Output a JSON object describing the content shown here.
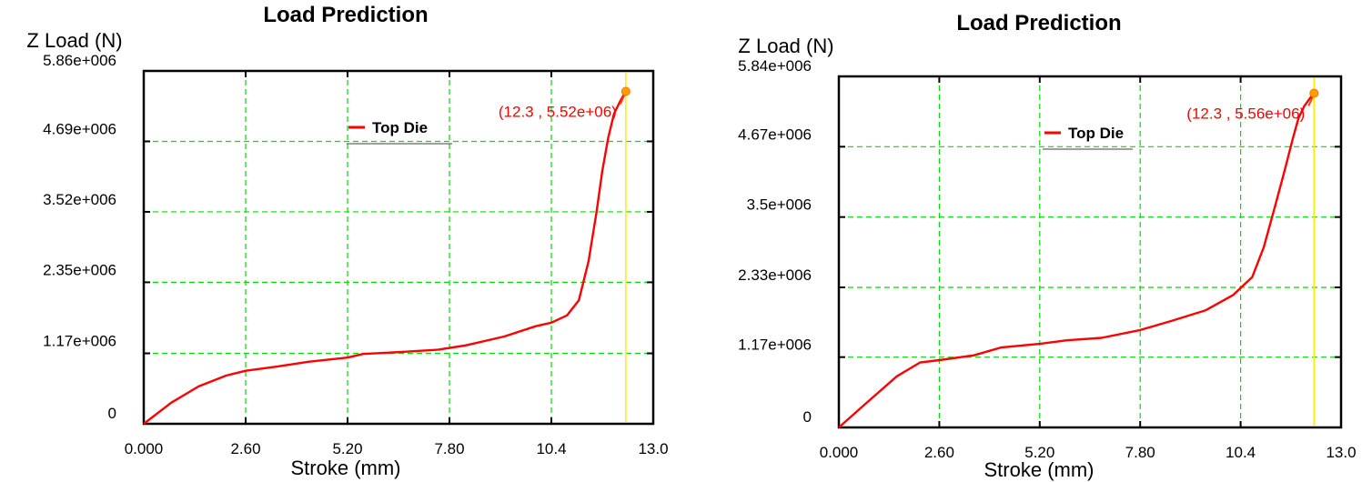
{
  "chart_data": [
    {
      "type": "line",
      "title": "Load Prediction",
      "ylabel": "Z Load (N)",
      "xlabel": "Stroke (mm)",
      "xlim": [
        0,
        13.0
      ],
      "ylim": [
        0,
        5860000
      ],
      "x_ticks": [
        0,
        2.6,
        5.2,
        7.8,
        10.4,
        13.0
      ],
      "x_tick_labels": [
        "0.000",
        "2.60",
        "5.20",
        "7.80",
        "10.4",
        "13.0"
      ],
      "y_ticks": [
        0,
        1170000,
        2350000,
        3520000,
        4690000,
        5860000
      ],
      "y_tick_labels": [
        "0",
        "1.17e+006",
        "2.35e+006",
        "3.52e+006",
        "4.69e+006",
        "5.86e+006"
      ],
      "grid": true,
      "legend": "top-center",
      "cursor_x": 12.3,
      "annotation": {
        "text": "(12.3 , 5.52e+06)",
        "x": 12.3,
        "y": 5520000
      },
      "series": [
        {
          "name": "Top Die",
          "color": "#ff0000",
          "x": [
            0,
            0.7,
            1.4,
            2.1,
            2.6,
            3.4,
            4.2,
            5.2,
            5.6,
            6.5,
            7.5,
            8.2,
            9.2,
            10.0,
            10.4,
            10.8,
            11.1,
            11.35,
            11.55,
            11.7,
            11.85,
            12.0,
            12.15,
            12.3
          ],
          "y": [
            0,
            350000,
            620000,
            800000,
            880000,
            950000,
            1030000,
            1100000,
            1160000,
            1190000,
            1230000,
            1300000,
            1450000,
            1620000,
            1680000,
            1800000,
            2050000,
            2700000,
            3500000,
            4200000,
            4750000,
            5150000,
            5350000,
            5520000
          ]
        }
      ]
    },
    {
      "type": "line",
      "title": "Load Prediction",
      "ylabel": "Z Load (N)",
      "xlabel": "Stroke (mm)",
      "xlim": [
        0,
        13.0
      ],
      "ylim": [
        0,
        5840000
      ],
      "x_ticks": [
        0,
        2.6,
        5.2,
        7.8,
        10.4,
        13.0
      ],
      "x_tick_labels": [
        "0.000",
        "2.60",
        "5.20",
        "7.80",
        "10.4",
        "13.0"
      ],
      "y_ticks": [
        0,
        1170000,
        2330000,
        3500000,
        4670000,
        5840000
      ],
      "y_tick_labels": [
        "0",
        "1.17e+006",
        "2.33e+006",
        "3.5e+006",
        "4.67e+006",
        "5.84e+006"
      ],
      "grid": true,
      "legend": "top-center",
      "cursor_x": 12.3,
      "annotation": {
        "text": "(12.3 , 5.56e+06)",
        "x": 12.3,
        "y": 5560000
      },
      "series": [
        {
          "name": "Top Die",
          "color": "#ff0000",
          "x": [
            0,
            0.7,
            1.5,
            2.1,
            2.6,
            3.5,
            4.2,
            5.2,
            5.9,
            6.8,
            7.8,
            8.6,
            9.5,
            10.2,
            10.7,
            11.0,
            11.3,
            11.55,
            11.75,
            11.9,
            12.05,
            12.2,
            12.3
          ],
          "y": [
            0,
            400000,
            850000,
            1080000,
            1120000,
            1200000,
            1330000,
            1390000,
            1450000,
            1490000,
            1620000,
            1770000,
            1950000,
            2200000,
            2500000,
            3000000,
            3700000,
            4300000,
            4800000,
            5150000,
            5350000,
            5480000,
            5560000
          ]
        }
      ]
    }
  ]
}
